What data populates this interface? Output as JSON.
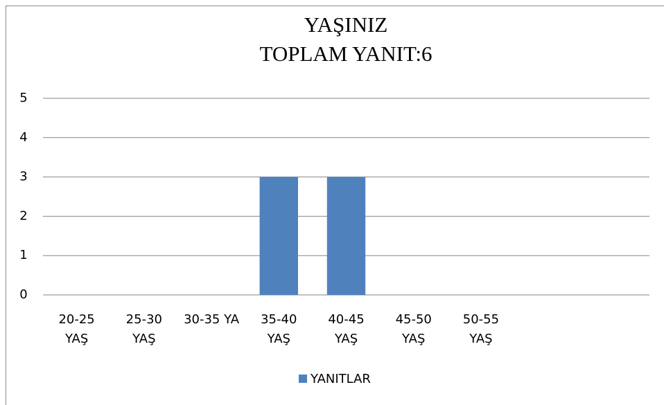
{
  "chart_data": {
    "type": "bar",
    "title": [
      "YAŞINIZ",
      "TOPLAM YANIT:6"
    ],
    "categories": [
      "20-25 YAŞ",
      "25-30 YAŞ",
      "30-35 YA",
      "35-40 YAŞ",
      "40-45 YAŞ",
      "45-50 YAŞ",
      "50-55 YAŞ",
      null,
      null
    ],
    "series": [
      {
        "name": "YANITLAR",
        "color": "#4f81bd",
        "values": [
          0,
          0,
          0,
          3,
          3,
          0,
          0,
          null,
          null
        ]
      }
    ],
    "ylim": [
      0,
      5
    ],
    "yticks": [
      0,
      1,
      2,
      3,
      4,
      5
    ],
    "grid": true,
    "legend": "bottom"
  }
}
